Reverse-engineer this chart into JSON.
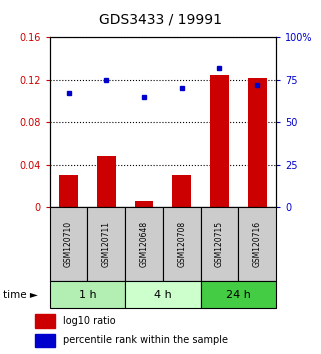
{
  "title": "GDS3433 / 19991",
  "samples": [
    "GSM120710",
    "GSM120711",
    "GSM120648",
    "GSM120708",
    "GSM120715",
    "GSM120716"
  ],
  "groups": [
    {
      "label": "1 h",
      "indices": [
        0,
        1
      ],
      "color": "#b3efb3"
    },
    {
      "label": "4 h",
      "indices": [
        2,
        3
      ],
      "color": "#ccffcc"
    },
    {
      "label": "24 h",
      "indices": [
        4,
        5
      ],
      "color": "#44cc44"
    }
  ],
  "log10_ratio": [
    0.03,
    0.048,
    0.006,
    0.03,
    0.124,
    0.122
  ],
  "percentile_rank": [
    67,
    75,
    65,
    70,
    82,
    72
  ],
  "ylim_left": [
    0,
    0.16
  ],
  "ylim_right": [
    0,
    100
  ],
  "yticks_left": [
    0,
    0.04,
    0.08,
    0.12,
    0.16
  ],
  "ytick_labels_left": [
    "0",
    "0.04",
    "0.08",
    "0.12",
    "0.16"
  ],
  "yticks_right": [
    0,
    25,
    50,
    75,
    100
  ],
  "ytick_labels_right": [
    "0",
    "25",
    "50",
    "75",
    "100%"
  ],
  "bar_color": "#cc0000",
  "dot_color": "#0000cc",
  "bar_width": 0.5,
  "background_color": "#ffffff",
  "sample_row_color": "#cccccc",
  "title_fontsize": 10,
  "tick_fontsize": 7,
  "sample_fontsize": 5.5,
  "group_fontsize": 8,
  "legend_fontsize": 7
}
